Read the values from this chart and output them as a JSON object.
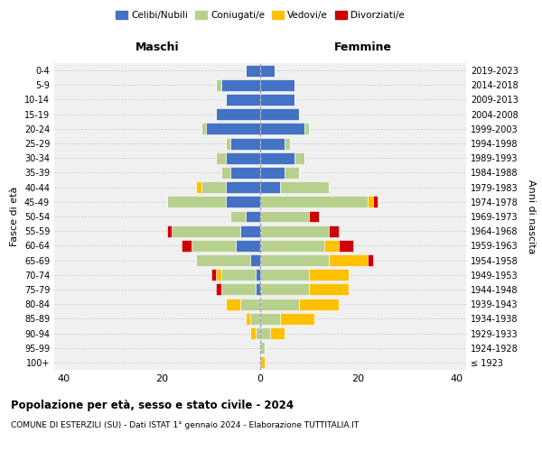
{
  "age_groups": [
    "100+",
    "95-99",
    "90-94",
    "85-89",
    "80-84",
    "75-79",
    "70-74",
    "65-69",
    "60-64",
    "55-59",
    "50-54",
    "45-49",
    "40-44",
    "35-39",
    "30-34",
    "25-29",
    "20-24",
    "15-19",
    "10-14",
    "5-9",
    "0-4"
  ],
  "birth_years": [
    "≤ 1923",
    "1924-1928",
    "1929-1933",
    "1934-1938",
    "1939-1943",
    "1944-1948",
    "1949-1953",
    "1954-1958",
    "1959-1963",
    "1964-1968",
    "1969-1973",
    "1974-1978",
    "1979-1983",
    "1984-1988",
    "1989-1993",
    "1994-1998",
    "1999-2003",
    "2004-2008",
    "2009-2013",
    "2014-2018",
    "2019-2023"
  ],
  "colors": {
    "celibi": "#4472c4",
    "coniugati": "#b8d08d",
    "vedovi": "#ffc000",
    "divorziati": "#cc0000"
  },
  "maschi": {
    "celibi": [
      0,
      0,
      0,
      0,
      0,
      1,
      1,
      2,
      5,
      4,
      3,
      7,
      7,
      6,
      7,
      6,
      11,
      9,
      7,
      8,
      3
    ],
    "coniugati": [
      0,
      0,
      1,
      2,
      4,
      7,
      7,
      11,
      9,
      14,
      3,
      12,
      5,
      2,
      2,
      1,
      1,
      0,
      0,
      1,
      0
    ],
    "vedovi": [
      0,
      0,
      1,
      1,
      3,
      0,
      1,
      0,
      0,
      0,
      0,
      0,
      1,
      0,
      0,
      0,
      0,
      0,
      0,
      0,
      0
    ],
    "divorziati": [
      0,
      0,
      0,
      0,
      0,
      1,
      1,
      0,
      2,
      1,
      0,
      0,
      0,
      0,
      0,
      0,
      0,
      0,
      0,
      0,
      0
    ]
  },
  "femmine": {
    "celibi": [
      0,
      0,
      0,
      0,
      0,
      0,
      0,
      0,
      0,
      0,
      0,
      0,
      4,
      5,
      7,
      5,
      9,
      8,
      7,
      7,
      3
    ],
    "coniugati": [
      0,
      1,
      2,
      4,
      8,
      10,
      10,
      14,
      13,
      14,
      10,
      22,
      10,
      3,
      2,
      1,
      1,
      0,
      0,
      0,
      0
    ],
    "vedovi": [
      1,
      0,
      3,
      7,
      8,
      8,
      8,
      8,
      3,
      0,
      0,
      1,
      0,
      0,
      0,
      0,
      0,
      0,
      0,
      0,
      0
    ],
    "divorziati": [
      0,
      0,
      0,
      0,
      0,
      0,
      0,
      1,
      3,
      2,
      2,
      1,
      0,
      0,
      0,
      0,
      0,
      0,
      0,
      0,
      0
    ]
  },
  "xlim": 42,
  "xticks": [
    -40,
    -20,
    0,
    20,
    40
  ],
  "xtick_labels": [
    "40",
    "20",
    "0",
    "20",
    "40"
  ],
  "title": "Popolazione per età, sesso e stato civile - 2024",
  "subtitle": "COMUNE DI ESTERZILI (SU) - Dati ISTAT 1° gennaio 2024 - Elaborazione TUTTITALIA.IT",
  "ylabel_left": "Fasce di età",
  "ylabel_right": "Anni di nascita",
  "legend_labels": [
    "Celibi/Nubili",
    "Coniugati/e",
    "Vedovi/e",
    "Divorziati/e"
  ],
  "maschi_label": "Maschi",
  "femmine_label": "Femmine",
  "background_color": "#f0f0f0"
}
